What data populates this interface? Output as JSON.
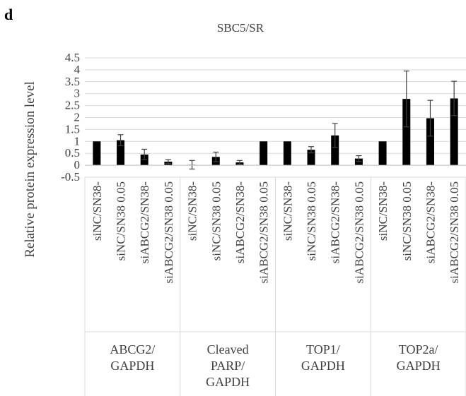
{
  "panel_label": "d",
  "chart_data": {
    "type": "bar",
    "title": "SBC5/SR",
    "ylabel": "Relative protein expression level",
    "xlabel": "",
    "ylim": [
      -0.5,
      4.5
    ],
    "yticks": [
      "-0.5",
      "0",
      "0.5",
      "1",
      "1.5",
      "2",
      "2.5",
      "3",
      "3.5",
      "4",
      "4.5"
    ],
    "ytick_values": [
      -0.5,
      0,
      0.5,
      1,
      1.5,
      2,
      2.5,
      3,
      3.5,
      4,
      4.5
    ],
    "grid": true,
    "bar_color": "#000000",
    "groups": [
      {
        "label_lines": [
          "ABCG2/",
          "GAPDH"
        ],
        "categories": [
          "siNC/SN38-",
          "siNC/SN38 0.05",
          "siABCG2/SN38-",
          "siABCG2/SN38 0.05"
        ],
        "values": [
          1.0,
          1.05,
          0.45,
          0.15
        ],
        "errors": [
          0.0,
          0.23,
          0.22,
          0.08
        ]
      },
      {
        "label_lines": [
          "Cleaved",
          "PARP/",
          "GAPDH"
        ],
        "categories": [
          "siNC/SN38-",
          "siNC/SN38 0.05",
          "siABCG2/SN38-",
          "siABCG2/SN38 0.05"
        ],
        "values": [
          0.02,
          0.35,
          0.12,
          1.0
        ],
        "errors": [
          0.18,
          0.2,
          0.08,
          0.0
        ]
      },
      {
        "label_lines": [
          "TOP1/",
          "GAPDH"
        ],
        "categories": [
          "siNC/SN38-",
          "siNC/SN38 0.05",
          "siABCG2/SN38-",
          "siABCG2/SN38 0.05"
        ],
        "values": [
          1.0,
          0.65,
          1.25,
          0.28
        ],
        "errors": [
          0.0,
          0.13,
          0.5,
          0.12
        ]
      },
      {
        "label_lines": [
          "TOP2a/",
          "GAPDH"
        ],
        "categories": [
          "siNC/SN38-",
          "siNC/SN38 0.05",
          "siABCG2/SN38-",
          "siABCG2/SN38 0.05"
        ],
        "values": [
          1.0,
          2.78,
          1.97,
          2.8
        ],
        "errors": [
          0.0,
          1.17,
          0.75,
          0.72
        ]
      }
    ]
  }
}
